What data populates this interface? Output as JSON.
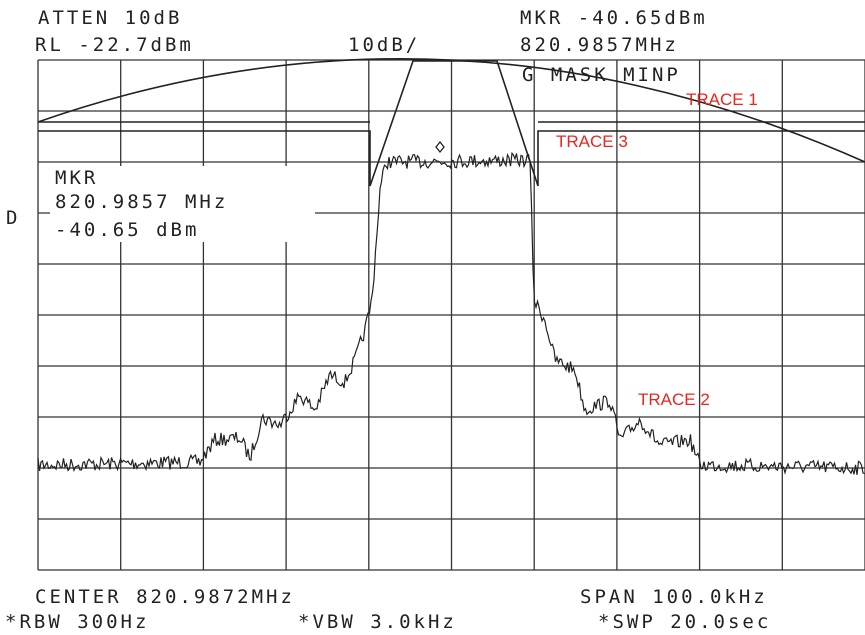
{
  "header": {
    "atten": "ATTEN 10dB",
    "ref_level": "RL -22.7dBm",
    "scale": "10dB/",
    "marker": "MKR -40.65dBm",
    "marker_freq": "820.9857MHz"
  },
  "screen": {
    "mask_label": "G MASK MINP",
    "marker_box": [
      "MKR",
      "820.9857 MHz",
      "-40.65 dBm"
    ],
    "detector": "D",
    "trace_labels": [
      "TRACE 1",
      "TRACE 3",
      "TRACE 2"
    ]
  },
  "footer": {
    "center": "CENTER 820.9872MHz",
    "span": "SPAN 100.0kHz",
    "rbw": "*RBW 300Hz",
    "vbw": "*VBW 3.0kHz",
    "sweep": "*SWP 20.0sec"
  }
}
